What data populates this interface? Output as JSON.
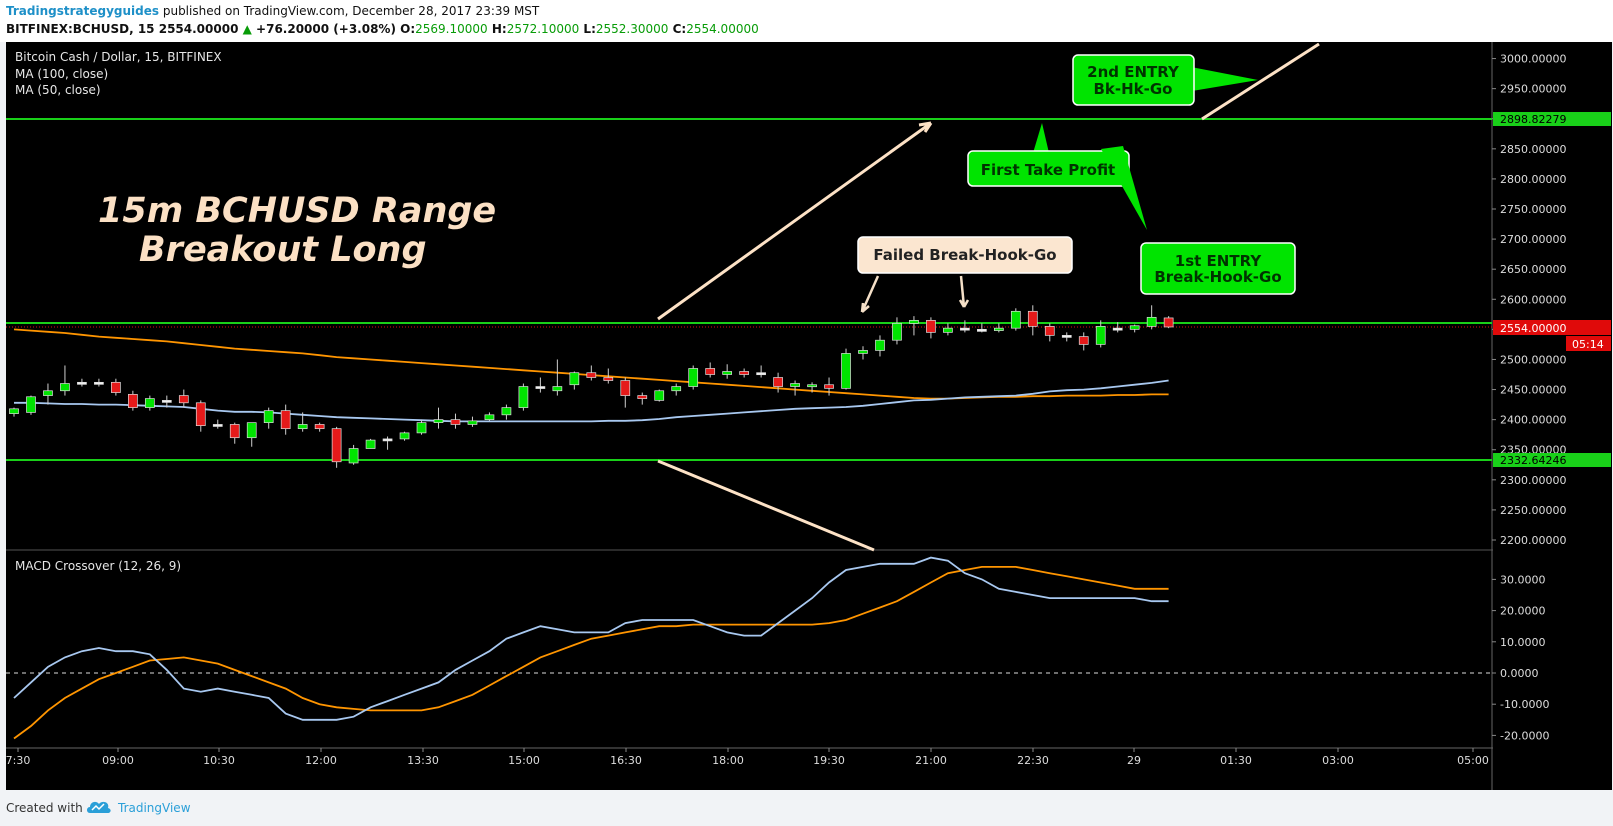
{
  "header": {
    "author": "Tradingstrategyguides",
    "published": " published on TradingView.com, December 28, 2017 23:39 MST",
    "symbol": "BITFINEX:BCHUSD, 15",
    "price": "2554.00000",
    "change_arrow": "▲",
    "change": "+76.20000 (+3.08%)",
    "open_label": "O:",
    "open": "2569.10000",
    "high_label": "H:",
    "high": "2572.10000",
    "low_label": "L:",
    "low": "2552.30000",
    "close_label": "C:",
    "close": "2554.00000"
  },
  "legend": {
    "pair": "Bitcoin Cash / Dollar, 15, BITFINEX",
    "ma100": "MA (100, close)",
    "ma50": "MA (50, close)",
    "macd": "MACD Crossover (12, 26, 9)"
  },
  "annotations": {
    "title_line1": "15m BCHUSD Range",
    "title_line2": "Breakout Long",
    "failed": "Failed Break-Hook-Go",
    "first_tp": "First Take Profit",
    "entry1_l1": "1st ENTRY",
    "entry1_l2": "Break-Hook-Go",
    "entry2_l1": "2nd ENTRY",
    "entry2_l2": "Bk-Hk-Go"
  },
  "price_axis": {
    "ticks": [
      3000,
      2950,
      2900,
      2850,
      2800,
      2750,
      2700,
      2650,
      2600,
      2550,
      2500,
      2450,
      2400,
      2350,
      2300,
      2250,
      2200
    ],
    "tick_labels": [
      "3000.00000",
      "2950.00000",
      "2900.00000",
      "2850.00000",
      "2800.00000",
      "2750.00000",
      "2700.00000",
      "2650.00000",
      "2600.00000",
      "2550.00000",
      "2500.00000",
      "2450.00000",
      "2400.00000",
      "2350.00000",
      "2300.00000",
      "2250.00000",
      "2200.00000"
    ],
    "resistance_label": "2898.82279",
    "support_label": "2332.64246",
    "current_label": "2554.00000",
    "countdown": "05:14"
  },
  "macd_axis": {
    "ticks": [
      30,
      20,
      10,
      0,
      -10,
      -20
    ],
    "tick_labels": [
      "30.0000",
      "20.0000",
      "10.0000",
      "0.0000",
      "-10.0000",
      "-20.0000"
    ]
  },
  "time_axis": {
    "labels": [
      "7:30",
      "09:00",
      "10:30",
      "12:00",
      "13:30",
      "15:00",
      "16:30",
      "18:00",
      "19:30",
      "21:00",
      "22:30",
      "29",
      "01:30",
      "03:00",
      "05:00"
    ]
  },
  "chart_data": {
    "type": "candlestick",
    "symbol": "BITFINEX:BCHUSD",
    "interval": "15",
    "price_range": [
      2180,
      3030
    ],
    "levels": {
      "resistance": 2898.82279,
      "range_top": 2560,
      "support": 2332.64246,
      "current": 2554.0
    },
    "candles": [
      [
        2410,
        2420,
        2405,
        2418
      ],
      [
        2412,
        2440,
        2408,
        2438
      ],
      [
        2440,
        2460,
        2425,
        2448
      ],
      [
        2448,
        2490,
        2440,
        2460
      ],
      [
        2462,
        2468,
        2455,
        2460
      ],
      [
        2460,
        2468,
        2455,
        2462
      ],
      [
        2462,
        2468,
        2440,
        2445
      ],
      [
        2442,
        2448,
        2415,
        2420
      ],
      [
        2420,
        2440,
        2415,
        2435
      ],
      [
        2432,
        2440,
        2420,
        2430
      ],
      [
        2440,
        2450,
        2420,
        2428
      ],
      [
        2428,
        2432,
        2380,
        2390
      ],
      [
        2390,
        2400,
        2385,
        2392
      ],
      [
        2392,
        2395,
        2360,
        2370
      ],
      [
        2370,
        2395,
        2355,
        2395
      ],
      [
        2395,
        2420,
        2385,
        2415
      ],
      [
        2415,
        2425,
        2375,
        2385
      ],
      [
        2385,
        2412,
        2380,
        2392
      ],
      [
        2392,
        2395,
        2380,
        2385
      ],
      [
        2385,
        2388,
        2320,
        2330
      ],
      [
        2328,
        2358,
        2325,
        2352
      ],
      [
        2352,
        2368,
        2352,
        2366
      ],
      [
        2366,
        2372,
        2350,
        2368
      ],
      [
        2368,
        2380,
        2365,
        2378
      ],
      [
        2378,
        2400,
        2375,
        2395
      ],
      [
        2395,
        2420,
        2385,
        2400
      ],
      [
        2400,
        2410,
        2385,
        2392
      ],
      [
        2392,
        2405,
        2388,
        2398
      ],
      [
        2400,
        2412,
        2398,
        2408
      ],
      [
        2408,
        2425,
        2400,
        2420
      ],
      [
        2420,
        2460,
        2415,
        2455
      ],
      [
        2455,
        2470,
        2445,
        2455
      ],
      [
        2448,
        2500,
        2440,
        2455
      ],
      [
        2458,
        2480,
        2450,
        2478
      ],
      [
        2478,
        2490,
        2465,
        2470
      ],
      [
        2470,
        2485,
        2460,
        2465
      ],
      [
        2465,
        2470,
        2420,
        2440
      ],
      [
        2440,
        2445,
        2425,
        2435
      ],
      [
        2432,
        2450,
        2430,
        2448
      ],
      [
        2448,
        2460,
        2440,
        2455
      ],
      [
        2455,
        2490,
        2450,
        2485
      ],
      [
        2485,
        2495,
        2470,
        2475
      ],
      [
        2475,
        2492,
        2468,
        2480
      ],
      [
        2480,
        2485,
        2470,
        2475
      ],
      [
        2478,
        2490,
        2470,
        2478
      ],
      [
        2470,
        2478,
        2445,
        2455
      ],
      [
        2455,
        2465,
        2440,
        2460
      ],
      [
        2455,
        2462,
        2445,
        2458
      ],
      [
        2458,
        2470,
        2440,
        2452
      ],
      [
        2452,
        2518,
        2450,
        2510
      ],
      [
        2510,
        2522,
        2500,
        2515
      ],
      [
        2515,
        2540,
        2505,
        2532
      ],
      [
        2532,
        2570,
        2525,
        2560
      ],
      [
        2560,
        2572,
        2540,
        2565
      ],
      [
        2565,
        2570,
        2535,
        2545
      ],
      [
        2545,
        2560,
        2540,
        2552
      ],
      [
        2552,
        2565,
        2545,
        2550
      ],
      [
        2550,
        2560,
        2545,
        2548
      ],
      [
        2548,
        2560,
        2545,
        2552
      ],
      [
        2552,
        2585,
        2548,
        2580
      ],
      [
        2580,
        2590,
        2540,
        2555
      ],
      [
        2555,
        2560,
        2530,
        2540
      ],
      [
        2540,
        2545,
        2530,
        2538
      ],
      [
        2538,
        2545,
        2515,
        2525
      ],
      [
        2525,
        2565,
        2520,
        2555
      ],
      [
        2552,
        2562,
        2545,
        2550
      ],
      [
        2550,
        2558,
        2545,
        2556
      ],
      [
        2555,
        2590,
        2550,
        2570
      ],
      [
        2569,
        2572,
        2552,
        2554
      ]
    ],
    "ma100": [
      2550,
      2548,
      2546,
      2544,
      2541,
      2538,
      2536,
      2534,
      2532,
      2530,
      2527,
      2524,
      2521,
      2518,
      2516,
      2514,
      2512,
      2510,
      2507,
      2504,
      2502,
      2500,
      2498,
      2496,
      2494,
      2492,
      2490,
      2488,
      2486,
      2484,
      2482,
      2480,
      2478,
      2476,
      2474,
      2472,
      2470,
      2468,
      2466,
      2464,
      2462,
      2460,
      2458,
      2456,
      2454,
      2452,
      2450,
      2448,
      2446,
      2444,
      2442,
      2440,
      2438,
      2436,
      2435,
      2435,
      2436,
      2437,
      2438,
      2438,
      2439,
      2439,
      2440,
      2440,
      2440,
      2441,
      2441,
      2442,
      2442
    ],
    "ma50": [
      2428,
      2428,
      2427,
      2426,
      2426,
      2425,
      2425,
      2424,
      2423,
      2422,
      2421,
      2418,
      2415,
      2413,
      2413,
      2412,
      2410,
      2408,
      2406,
      2404,
      2403,
      2402,
      2401,
      2400,
      2399,
      2398,
      2397,
      2397,
      2397,
      2397,
      2397,
      2397,
      2397,
      2397,
      2397,
      2398,
      2398,
      2399,
      2401,
      2404,
      2406,
      2408,
      2410,
      2412,
      2414,
      2416,
      2418,
      2419,
      2420,
      2421,
      2423,
      2426,
      2429,
      2432,
      2433,
      2435,
      2437,
      2438,
      2439,
      2440,
      2443,
      2447,
      2449,
      2450,
      2452,
      2455,
      2458,
      2461,
      2465
    ],
    "macd_range": [
      -23,
      37
    ],
    "macd": [
      -8,
      -3,
      2,
      5,
      7,
      8,
      7,
      7,
      6,
      1,
      -5,
      -6,
      -5,
      -6,
      -7,
      -8,
      -13,
      -15,
      -15,
      -15,
      -14,
      -11,
      -9,
      -7,
      -5,
      -3,
      1,
      4,
      7,
      11,
      13,
      15,
      14,
      13,
      13,
      13,
      16,
      17,
      17,
      17,
      17,
      15,
      13,
      12,
      12,
      16,
      20,
      24,
      29,
      33,
      34,
      35,
      35,
      35,
      37,
      36,
      32,
      30,
      27,
      26,
      25,
      24,
      24,
      24,
      24,
      24,
      24,
      23,
      23
    ],
    "signal": [
      -21,
      -17,
      -12,
      -8,
      -5,
      -2,
      0,
      2,
      4,
      4.5,
      5,
      4,
      3,
      1,
      -1,
      -3,
      -5,
      -8,
      -10,
      -11,
      -11.5,
      -12,
      -12,
      -12,
      -12,
      -11,
      -9,
      -7,
      -4,
      -1,
      2,
      5,
      7,
      9,
      11,
      12,
      13,
      14,
      15,
      15,
      15.5,
      15.5,
      15.5,
      15.5,
      15.5,
      15.5,
      15.5,
      15.5,
      16,
      17,
      19,
      21,
      23,
      26,
      29,
      32,
      33,
      34,
      34,
      34,
      33,
      32,
      31,
      30,
      29,
      28,
      27,
      27,
      27
    ]
  }
}
